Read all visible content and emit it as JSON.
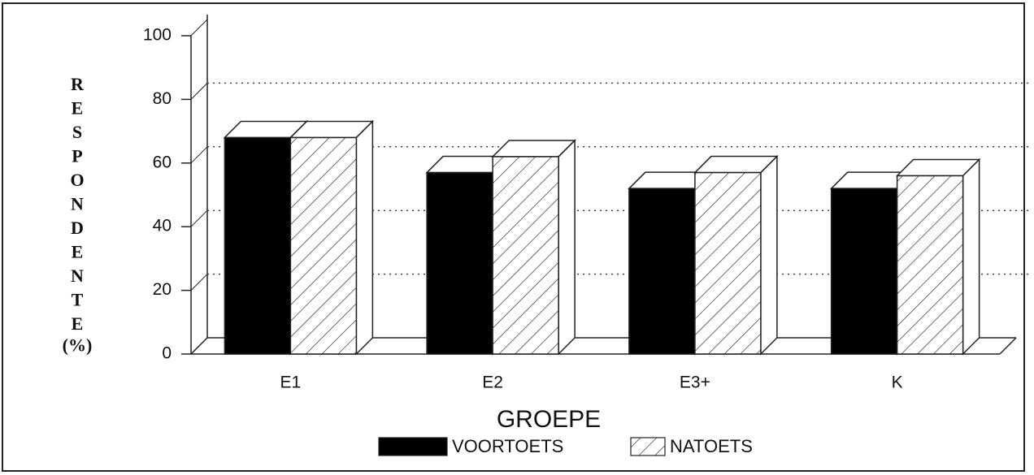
{
  "chart_data": {
    "type": "bar3d",
    "x_label": "GROEPE",
    "y_label": "RESPONDENTE",
    "y_unit": "(%)",
    "categories": [
      "E1",
      "E2",
      "E3+",
      "K"
    ],
    "series": [
      {
        "name": "VOORTOETS",
        "color": "#000000",
        "pattern": "solid",
        "values": [
          68,
          57,
          52,
          52
        ]
      },
      {
        "name": "NATOETS",
        "color": "#ffffff",
        "pattern": "hatch",
        "values": [
          68,
          62,
          57,
          56
        ]
      }
    ],
    "ylim": [
      0,
      100
    ],
    "yticks": [
      0,
      20,
      40,
      60,
      80,
      100
    ],
    "grid": true,
    "legend": "bottom"
  }
}
